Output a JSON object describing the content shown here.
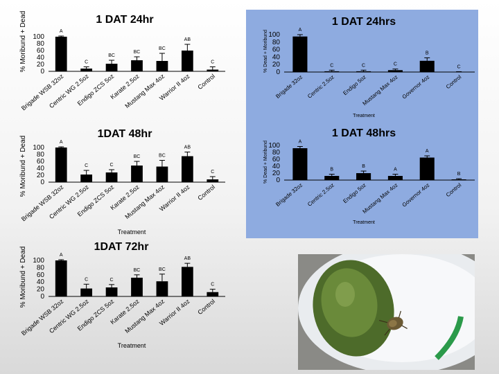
{
  "charts": [
    {
      "type": "bar",
      "title": "1 DAT 24hr",
      "ylabel": "% Moribund + Dead",
      "xlabel": "",
      "ylim": [
        0,
        100
      ],
      "yticks": [
        "100",
        "80",
        "60",
        "40",
        "20",
        "0"
      ],
      "categories": [
        "Brigade WSB 32oz",
        "Centric WG 2.5oz",
        "Endigo ZCS 5oz",
        "Karate 2.5oz",
        "Mustang Max 4oz",
        "Warrior II 4oz",
        "Control"
      ],
      "values": [
        100,
        8,
        22,
        32,
        30,
        60,
        5
      ],
      "errors": [
        2,
        5,
        10,
        10,
        22,
        18,
        8
      ],
      "letters": [
        "A",
        "C",
        "BC",
        "BC",
        "BC",
        "AB",
        "C"
      ]
    },
    {
      "type": "bar",
      "title": "1DAT 48hr",
      "ylabel": "% Moribund + Dead",
      "xlabel": "Treatment",
      "ylim": [
        0,
        100
      ],
      "yticks": [
        "100",
        "80",
        "60",
        "40",
        "20",
        "0"
      ],
      "categories": [
        "Brigade WSB 32oz",
        "Centric WG 2.5oz",
        "Endigo ZCS 5oz",
        "Karate 2.5oz",
        "Mustang Max 4oz",
        "Warrior II 4oz",
        "Control"
      ],
      "values": [
        100,
        22,
        28,
        48,
        45,
        75,
        8
      ],
      "errors": [
        2,
        12,
        8,
        12,
        18,
        12,
        8
      ],
      "letters": [
        "A",
        "C",
        "C",
        "BC",
        "BC",
        "AB",
        "C"
      ]
    },
    {
      "type": "bar",
      "title": "1DAT 72hr",
      "ylabel": "% Moribund + Dead",
      "xlabel": "Treatment",
      "ylim": [
        0,
        100
      ],
      "yticks": [
        "100",
        "80",
        "60",
        "40",
        "20",
        "0"
      ],
      "categories": [
        "Brigade WSB 32oz",
        "Centric WG 2.5oz",
        "Endigo ZCS 5oz",
        "Karate 2.5oz",
        "Mustang Max 4oz",
        "Warrior II 4oz",
        "Control"
      ],
      "values": [
        100,
        22,
        25,
        52,
        42,
        82,
        12
      ],
      "errors": [
        2,
        12,
        8,
        8,
        20,
        10,
        8
      ],
      "letters": [
        "A",
        "C",
        "C",
        "BC",
        "BC",
        "AB",
        "C"
      ]
    },
    {
      "type": "bar",
      "title": "1 DAT 24hrs",
      "ylabel": "% Dead + Moribund",
      "xlabel": "Treatment",
      "ylim": [
        0,
        100
      ],
      "yticks": [
        "100",
        "80",
        "60",
        "40",
        "20",
        "0"
      ],
      "categories": [
        "Brigade 32oz",
        "Centric 2.5oz",
        "Endigo 5oz",
        "Mustang Max 4oz",
        "Governor 4oz",
        "Control"
      ],
      "values": [
        95,
        2,
        2,
        5,
        30,
        0
      ],
      "errors": [
        5,
        3,
        3,
        3,
        8,
        1
      ],
      "letters": [
        "A",
        "C",
        "C",
        "C",
        "B",
        "C"
      ]
    },
    {
      "type": "bar",
      "title": "1 DAT 48hrs",
      "ylabel": "% Dead + Moribund",
      "xlabel": "Treatment",
      "ylim": [
        0,
        100
      ],
      "yticks": [
        "100",
        "80",
        "60",
        "40",
        "20",
        "0"
      ],
      "categories": [
        "Brigade 32oz",
        "Centric 2.5oz",
        "Endigo 5oz",
        "Mustang Max 4oz",
        "Governor 4oz",
        "Control"
      ],
      "values": [
        92,
        12,
        20,
        12,
        65,
        2
      ],
      "errors": [
        5,
        5,
        6,
        5,
        5,
        2
      ],
      "letters": [
        "A",
        "B",
        "B",
        "A",
        "A",
        "B"
      ]
    }
  ],
  "colors": {
    "bar": "#000000",
    "panel": "#8eabe0"
  }
}
